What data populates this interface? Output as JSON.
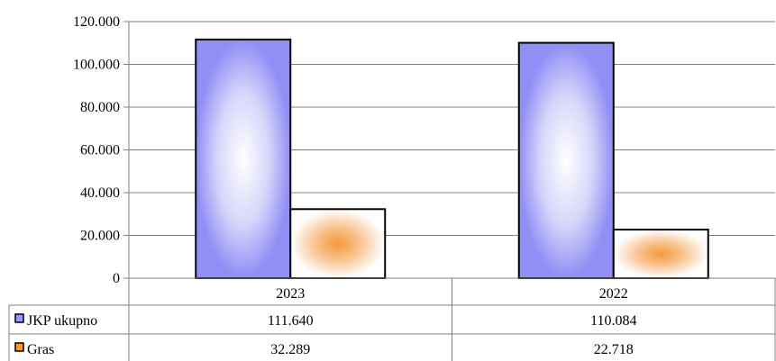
{
  "chart_data": {
    "type": "bar",
    "categories": [
      "2023",
      "2022"
    ],
    "series": [
      {
        "name": "JKP ukupno",
        "values": [
          111640,
          110084
        ],
        "value_labels": [
          "111.640",
          "110.084"
        ],
        "color": "#8f8ff5"
      },
      {
        "name": "Gras",
        "values": [
          32289,
          22718
        ],
        "value_labels": [
          "32.289",
          "22.718"
        ],
        "color": "#f59a3a"
      }
    ],
    "ylim": [
      0,
      120000
    ],
    "yticks": [
      0,
      20000,
      40000,
      60000,
      80000,
      100000,
      120000
    ],
    "ytick_labels": [
      "0",
      "20.000",
      "40.000",
      "60.000",
      "80.000",
      "100.000",
      "120.000"
    ],
    "grid": true,
    "legend": "data-table-left",
    "title": "",
    "xlabel": "",
    "ylabel": ""
  }
}
